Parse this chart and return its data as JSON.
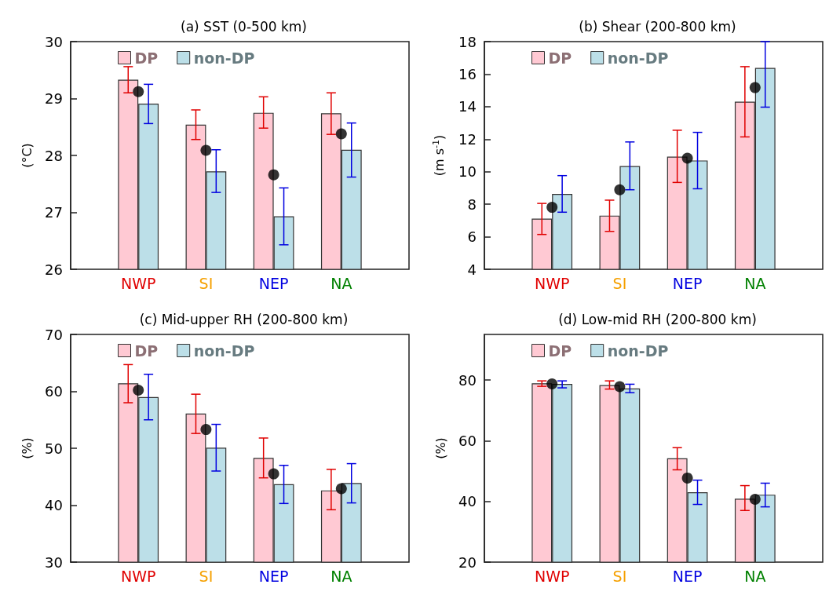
{
  "chart_data": [
    {
      "type": "bar",
      "title": "(a) SST (0-500 km)",
      "ylabel": "(°C)",
      "categories": [
        "NWP",
        "SI",
        "NEP",
        "NA"
      ],
      "ylim": [
        26,
        30
      ],
      "yticks": [
        26,
        27,
        28,
        29,
        30
      ],
      "grid": false,
      "legend": "top left",
      "marker": "circle",
      "series": [
        {
          "name": "DP",
          "color": "#ffc9d3",
          "values": [
            29.33,
            28.54,
            28.75,
            28.74
          ],
          "errors": [
            [
              29.1,
              29.56
            ],
            [
              28.28,
              28.8
            ],
            [
              28.48,
              29.03
            ],
            [
              28.37,
              29.1
            ]
          ]
        },
        {
          "name": "non-DP",
          "color": "#bcdfe8",
          "values": [
            28.91,
            27.72,
            26.93,
            28.1
          ],
          "errors": [
            [
              28.56,
              29.25
            ],
            [
              27.35,
              28.1
            ],
            [
              26.43,
              27.43
            ],
            [
              27.62,
              28.57
            ]
          ]
        },
        {
          "type": "scatter",
          "color": "#000000",
          "x": [
            "NWP",
            "SI",
            "NEP",
            "NA"
          ],
          "values": [
            29.12,
            28.09,
            27.66,
            28.38
          ]
        }
      ]
    },
    {
      "type": "bar",
      "title": "(b) Shear (200-800 km)",
      "ylabel": "(m s$^{-1}$)",
      "categories": [
        "NWP",
        "SI",
        "NEP",
        "NA"
      ],
      "ylim": [
        4,
        18
      ],
      "yticks": [
        4,
        6,
        8,
        10,
        12,
        14,
        16,
        18
      ],
      "grid": false,
      "legend": "top left",
      "marker": "circle",
      "series": [
        {
          "name": "DP",
          "color": "#ffc9d3",
          "values": [
            7.11,
            7.3,
            10.93,
            14.31
          ],
          "errors": [
            [
              6.14,
              8.05
            ],
            [
              6.33,
              8.25
            ],
            [
              9.34,
              12.55
            ],
            [
              12.14,
              16.46
            ]
          ]
        },
        {
          "name": "non-DP",
          "color": "#bcdfe8",
          "values": [
            8.63,
            10.35,
            10.69,
            16.38
          ],
          "errors": [
            [
              7.51,
              9.76
            ],
            [
              8.89,
              11.83
            ],
            [
              8.95,
              12.42
            ],
            [
              13.97,
              18
            ]
          ]
        },
        {
          "type": "scatter",
          "color": "#000000",
          "x": [
            "NWP",
            "SI",
            "NEP",
            "NA"
          ],
          "values": [
            7.81,
            8.89,
            10.83,
            15.17
          ]
        }
      ]
    },
    {
      "type": "bar",
      "title": "(c) Mid-upper RH (200-800 km)",
      "ylabel": "(%)",
      "categories": [
        "NWP",
        "SI",
        "NEP",
        "NA"
      ],
      "ylim": [
        30,
        70
      ],
      "yticks": [
        30,
        40,
        50,
        60,
        70
      ],
      "grid": false,
      "legend": "top left",
      "marker": "circle",
      "series": [
        {
          "name": "DP",
          "color": "#ffc9d3",
          "values": [
            61.4,
            56.1,
            48.3,
            42.6
          ],
          "errors": [
            [
              58.0,
              64.7
            ],
            [
              52.6,
              59.5
            ],
            [
              44.8,
              51.8
            ],
            [
              39.2,
              46.3
            ]
          ]
        },
        {
          "name": "non-DP",
          "color": "#bcdfe8",
          "values": [
            59.0,
            50.1,
            43.7,
            43.9
          ],
          "errors": [
            [
              55.0,
              63.0
            ],
            [
              46.0,
              54.2
            ],
            [
              40.3,
              47.0
            ],
            [
              40.4,
              47.3
            ]
          ]
        },
        {
          "type": "scatter",
          "color": "#000000",
          "x": [
            "NWP",
            "SI",
            "NEP",
            "NA"
          ],
          "values": [
            60.2,
            53.3,
            45.5,
            42.9
          ]
        }
      ]
    },
    {
      "type": "bar",
      "title": "(d) Low-mid RH (200-800 km)",
      "ylabel": "(%)",
      "categories": [
        "NWP",
        "SI",
        "NEP",
        "NA"
      ],
      "ylim": [
        20,
        95
      ],
      "yticks": [
        20,
        40,
        60,
        80
      ],
      "grid": false,
      "legend": "top left",
      "marker": "circle",
      "series": [
        {
          "name": "DP",
          "color": "#ffc9d3",
          "values": [
            78.9,
            78.3,
            54.2,
            40.9
          ],
          "errors": [
            [
              77.9,
              79.7
            ],
            [
              77.0,
              79.7
            ],
            [
              50.4,
              57.7
            ],
            [
              37.0,
              45.2
            ]
          ]
        },
        {
          "name": "non-DP",
          "color": "#bcdfe8",
          "values": [
            78.7,
            77.2,
            43.0,
            42.2
          ],
          "errors": [
            [
              77.4,
              79.7
            ],
            [
              75.8,
              78.6
            ],
            [
              39.0,
              47.0
            ],
            [
              38.2,
              46.0
            ]
          ]
        },
        {
          "type": "scatter",
          "color": "#000000",
          "x": [
            "NWP",
            "SI",
            "NEP",
            "NA"
          ],
          "values": [
            78.7,
            77.8,
            47.7,
            40.7
          ]
        }
      ]
    }
  ]
}
